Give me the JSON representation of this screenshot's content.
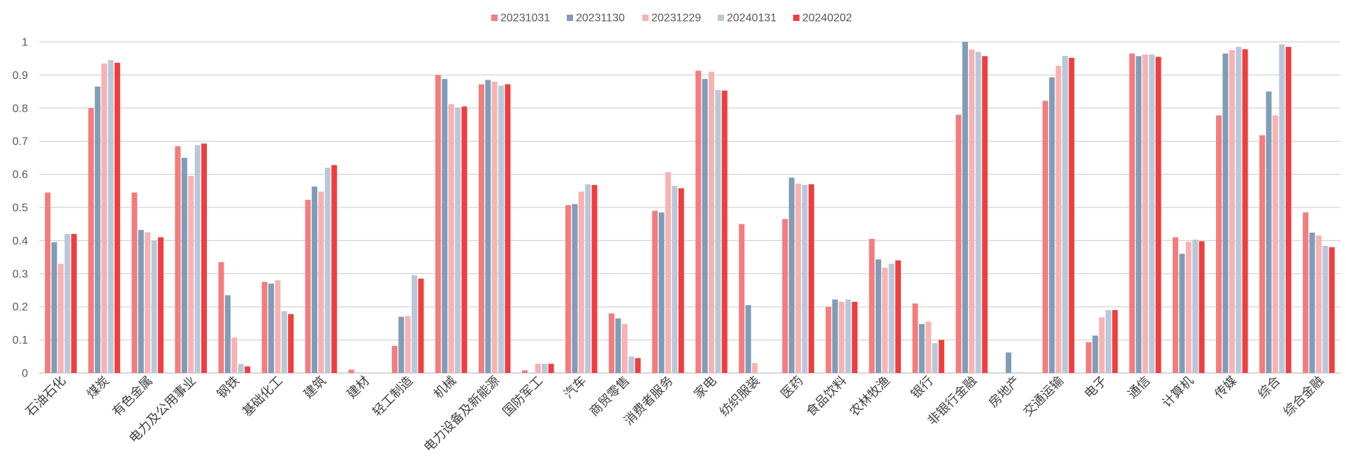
{
  "chart_data": {
    "type": "bar",
    "categories": [
      "石油石化",
      "煤炭",
      "有色金属",
      "电力及公用事业",
      "钢铁",
      "基础化工",
      "建筑",
      "建材",
      "轻工制造",
      "机械",
      "电力设备及新能源",
      "国防军工",
      "汽车",
      "商贸零售",
      "消费者服务",
      "家电",
      "纺织服装",
      "医药",
      "食品饮料",
      "农林牧渔",
      "银行",
      "非银行金融",
      "房地产",
      "交通运输",
      "电子",
      "通信",
      "计算机",
      "传媒",
      "综合",
      "综合金融"
    ],
    "series": [
      {
        "name": "20231031",
        "color": "#F47C7C",
        "values": [
          0.545,
          0.8,
          0.545,
          0.685,
          0.335,
          0.275,
          0.523,
          0.01,
          0.082,
          0.9,
          0.872,
          0.008,
          0.507,
          0.18,
          0.49,
          0.913,
          0.45,
          0.465,
          0.2,
          0.405,
          0.21,
          0.78,
          0,
          0.822,
          0.093,
          0.965,
          0.41,
          0.778,
          0.718,
          0.485
        ]
      },
      {
        "name": "20231130",
        "color": "#7F9DB9",
        "values": [
          0.395,
          0.865,
          0.432,
          0.65,
          0.235,
          0.27,
          0.563,
          0,
          0.17,
          0.888,
          0.885,
          0,
          0.51,
          0.165,
          0.485,
          0.888,
          0.205,
          0.59,
          0.222,
          0.343,
          0.148,
          1.0,
          0.062,
          0.893,
          0.113,
          0.957,
          0.36,
          0.965,
          0.85,
          0.424
        ]
      },
      {
        "name": "20231229",
        "color": "#F7B2B2",
        "values": [
          0.33,
          0.935,
          0.425,
          0.595,
          0.107,
          0.28,
          0.548,
          0,
          0.172,
          0.812,
          0.88,
          0.028,
          0.548,
          0.148,
          0.607,
          0.91,
          0.03,
          0.572,
          0.215,
          0.318,
          0.155,
          0.977,
          0,
          0.928,
          0.168,
          0.962,
          0.396,
          0.975,
          0.778,
          0.415
        ]
      },
      {
        "name": "20240131",
        "color": "#B8C8DA",
        "values": [
          0.42,
          0.945,
          0.4,
          0.688,
          0.027,
          0.187,
          0.62,
          0,
          0.295,
          0.802,
          0.868,
          0.028,
          0.57,
          0.05,
          0.565,
          0.855,
          0,
          0.568,
          0.222,
          0.33,
          0.09,
          0.97,
          0.002,
          0.958,
          0.19,
          0.962,
          0.403,
          0.985,
          0.993,
          0.384
        ]
      },
      {
        "name": "20240202",
        "color": "#F03E3E",
        "values": [
          0.42,
          0.937,
          0.41,
          0.693,
          0.02,
          0.178,
          0.628,
          0,
          0.285,
          0.805,
          0.872,
          0.028,
          0.568,
          0.045,
          0.558,
          0.853,
          0,
          0.57,
          0.215,
          0.34,
          0.1,
          0.957,
          0,
          0.952,
          0.19,
          0.955,
          0.398,
          0.978,
          0.985,
          0.38
        ]
      }
    ],
    "ylim": [
      0,
      1
    ],
    "yticks": [
      "0",
      "0.1",
      "0.2",
      "0.3",
      "0.4",
      "0.5",
      "0.6",
      "0.7",
      "0.8",
      "0.9",
      "1"
    ],
    "grid": true,
    "legend_position": "top-center"
  }
}
